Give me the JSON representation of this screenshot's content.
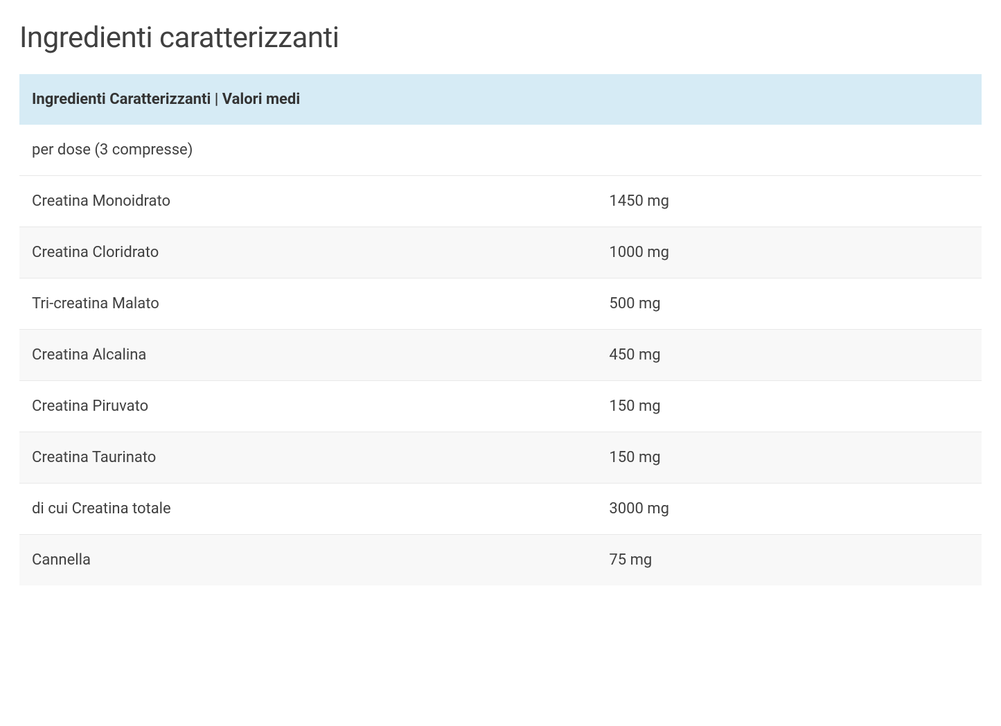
{
  "title": "Ingredienti caratterizzanti",
  "table": {
    "header": "Ingredienti Caratterizzanti | Valori medi",
    "subheader": "per dose (3 compresse)",
    "rows": [
      {
        "ingredient": "Creatina Monoidrato",
        "value": "1450 mg"
      },
      {
        "ingredient": "Creatina Cloridrato",
        "value": "1000 mg"
      },
      {
        "ingredient": "Tri-creatina Malato",
        "value": "500 mg"
      },
      {
        "ingredient": "Creatina Alcalina",
        "value": "450 mg"
      },
      {
        "ingredient": "Creatina Piruvato",
        "value": "150 mg"
      },
      {
        "ingredient": "Creatina Taurinato",
        "value": "150 mg"
      },
      {
        "ingredient": "di cui Creatina totale",
        "value": "3000 mg"
      },
      {
        "ingredient": "Cannella",
        "value": "75 mg"
      }
    ],
    "styling": {
      "header_bg_color": "#d6ebf5",
      "row_alt_bg_color": "#f8f8f8",
      "row_bg_color": "#ffffff",
      "border_color": "#e8e8e8",
      "text_color": "#404040",
      "title_fontsize": 42,
      "header_fontsize": 22,
      "body_fontsize": 22,
      "header_fontweight": 700,
      "body_fontweight": 400,
      "cell_padding": "24px 18px",
      "ingredient_col_width": "60%",
      "value_col_width": "40%"
    }
  }
}
